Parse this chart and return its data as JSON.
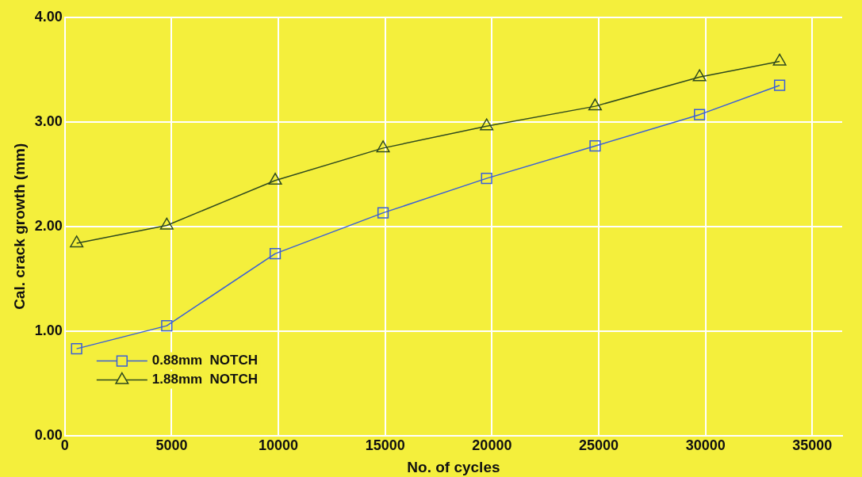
{
  "chart_data": {
    "type": "line",
    "xlabel": "No. of cycles",
    "ylabel": "Cal. crack growth (mm)",
    "xlim": [
      0,
      36400
    ],
    "xticks": [
      0,
      5000,
      10000,
      15000,
      20000,
      25000,
      30000,
      35000
    ],
    "ylim": [
      0,
      4
    ],
    "yticks": [
      {
        "value": 0,
        "label": "0.00"
      },
      {
        "value": 1,
        "label": "1.00"
      },
      {
        "value": 2,
        "label": "2.00"
      },
      {
        "value": 3,
        "label": "3.00"
      },
      {
        "value": 4,
        "label": "4.00"
      }
    ],
    "grid": true,
    "legend": "bottom left",
    "line_style": "solid",
    "series": [
      {
        "name": "0.88mm  NOTCH",
        "color": "#3a5fd8",
        "marker": "square",
        "x": [
          550,
          4770,
          9850,
          14900,
          19750,
          24830,
          29720,
          33470
        ],
        "values": [
          0.83,
          1.05,
          1.74,
          2.13,
          2.46,
          2.77,
          3.07,
          3.35
        ]
      },
      {
        "name": "1.88mm  NOTCH",
        "color": "#2f4a1f",
        "marker": "triangle",
        "x": [
          550,
          4770,
          9850,
          14900,
          19750,
          24830,
          29720,
          33470
        ],
        "values": [
          1.84,
          2.01,
          2.44,
          2.75,
          2.96,
          3.15,
          3.43,
          3.58
        ]
      }
    ]
  }
}
